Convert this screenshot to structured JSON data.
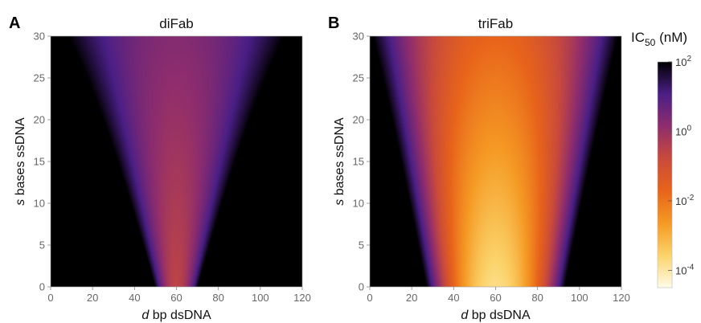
{
  "chart_data": [
    {
      "type": "heatmap",
      "panel_label": "A",
      "title": "diFab",
      "xlabel": {
        "var": "d",
        "text": " bp dsDNA"
      },
      "ylabel": {
        "var": "s",
        "text": " bases ssDNA"
      },
      "xlim": [
        0,
        120
      ],
      "ylim": [
        0,
        30
      ],
      "xticks": [
        "0",
        "20",
        "40",
        "60",
        "80",
        "100",
        "120"
      ],
      "yticks": [
        "0",
        "5",
        "10",
        "15",
        "20",
        "25",
        "30"
      ],
      "optimum": {
        "d": 60,
        "s": 0
      },
      "center_log10_ic50": [
        {
          "s": 0,
          "value": -0.6
        },
        {
          "s": 30,
          "value": 0.3
        }
      ],
      "halfwidth_d_at_log10_ic50_1": [
        {
          "s": 0,
          "value": 8
        },
        {
          "s": 30,
          "value": 33
        }
      ]
    },
    {
      "type": "heatmap",
      "panel_label": "B",
      "title": "triFab",
      "xlabel": {
        "var": "d",
        "text": " bp dsDNA"
      },
      "ylabel": {
        "var": "s",
        "text": " bases ssDNA"
      },
      "xlim": [
        0,
        120
      ],
      "ylim": [
        0,
        30
      ],
      "xticks": [
        "0",
        "20",
        "40",
        "60",
        "80",
        "100",
        "120"
      ],
      "yticks": [
        "0",
        "5",
        "10",
        "15",
        "20",
        "25",
        "30"
      ],
      "optimum": {
        "d": 60,
        "s": 0
      },
      "center_log10_ic50": [
        {
          "s": 0,
          "value": -3.8
        },
        {
          "s": 30,
          "value": -1.7
        }
      ],
      "halfwidth_d_at_log10_ic50_1": [
        {
          "s": 0,
          "value": 30
        },
        {
          "s": 30,
          "value": 50
        }
      ]
    }
  ],
  "colorbar": {
    "title_main": "IC",
    "title_sub": "50",
    "title_unit": " (nM)",
    "scale": "log",
    "range_log10": [
      -4.5,
      2
    ],
    "ticks": [
      {
        "base": "10",
        "exp": "2",
        "log10": 2
      },
      {
        "base": "10",
        "exp": "0",
        "log10": 0
      },
      {
        "base": "10",
        "exp": "-2",
        "log10": -2
      },
      {
        "base": "10",
        "exp": "-4",
        "log10": -4
      }
    ],
    "colors": [
      "#fffce8",
      "#fbd36a",
      "#f59a24",
      "#e8641a",
      "#c94a3c",
      "#8f2d6d",
      "#4a1f86",
      "#000000"
    ]
  }
}
